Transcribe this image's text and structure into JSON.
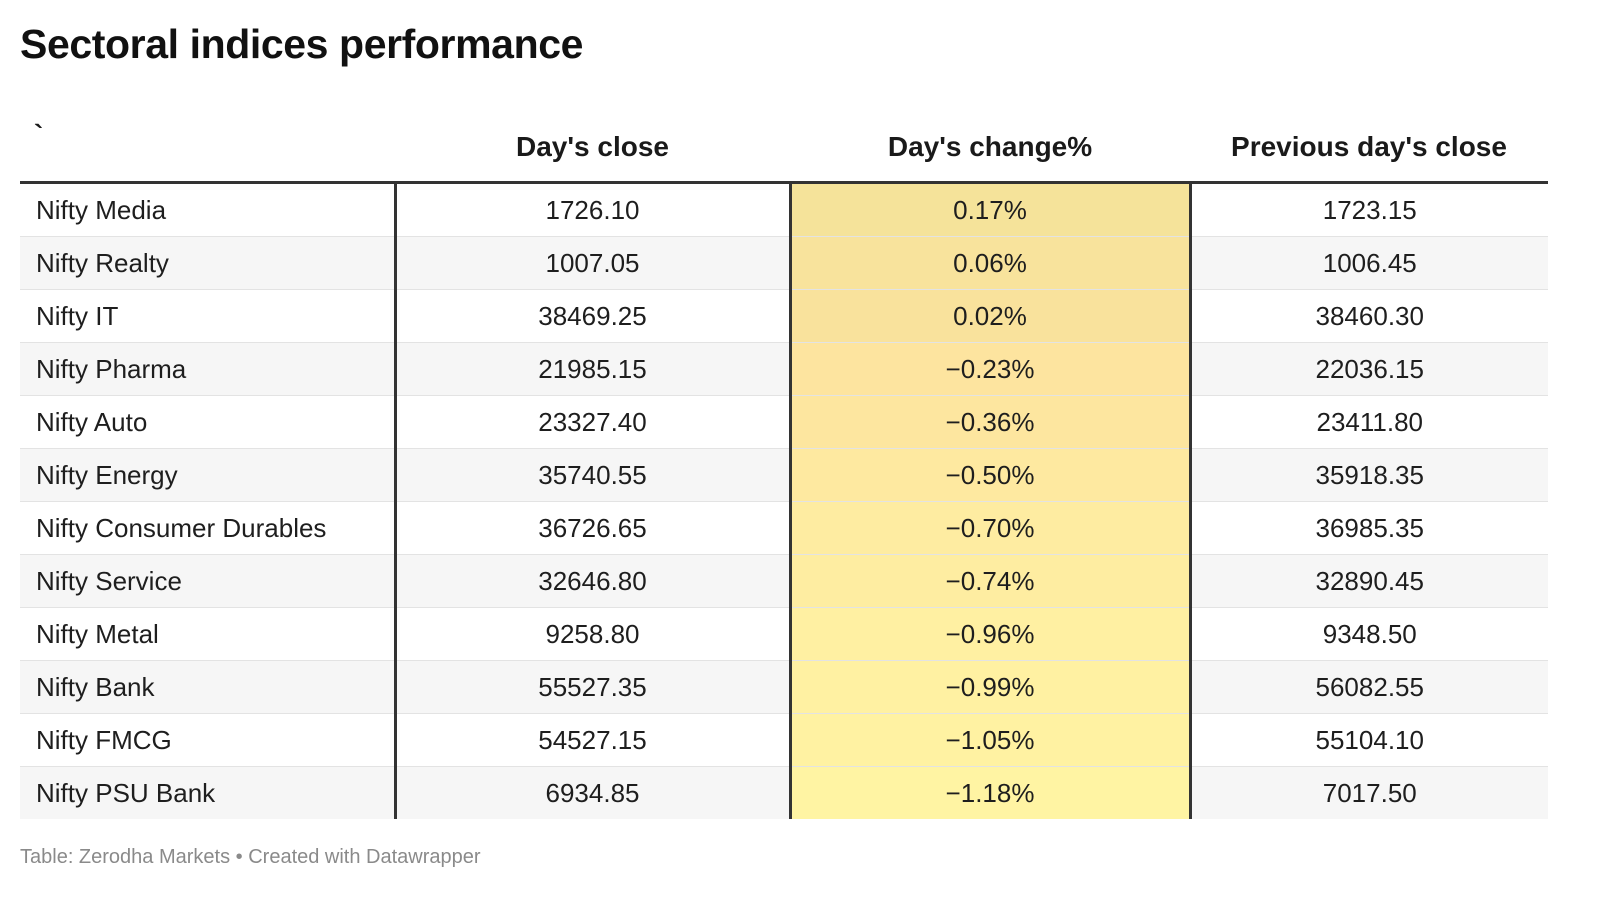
{
  "title": "Sectoral indices performance",
  "columns": {
    "name": "`",
    "close": "Day's close",
    "change": "Day's change%",
    "prev": "Previous day's close"
  },
  "rows": [
    {
      "name": "Nifty Media",
      "close": "1726.10",
      "change": "0.17%",
      "prev": "1723.15"
    },
    {
      "name": "Nifty Realty",
      "close": "1007.05",
      "change": "0.06%",
      "prev": "1006.45"
    },
    {
      "name": "Nifty IT",
      "close": "38469.25",
      "change": "0.02%",
      "prev": "38460.30"
    },
    {
      "name": "Nifty Pharma",
      "close": "21985.15",
      "change": "−0.23%",
      "prev": "22036.15"
    },
    {
      "name": "Nifty Auto",
      "close": "23327.40",
      "change": "−0.36%",
      "prev": "23411.80"
    },
    {
      "name": "Nifty Energy",
      "close": "35740.55",
      "change": "−0.50%",
      "prev": "35918.35"
    },
    {
      "name": "Nifty Consumer Durables",
      "close": "36726.65",
      "change": "−0.70%",
      "prev": "36985.35"
    },
    {
      "name": "Nifty Service",
      "close": "32646.80",
      "change": "−0.74%",
      "prev": "32890.45"
    },
    {
      "name": "Nifty Metal",
      "close": "9258.80",
      "change": "−0.96%",
      "prev": "9348.50"
    },
    {
      "name": "Nifty Bank",
      "close": "55527.35",
      "change": "−0.99%",
      "prev": "56082.55"
    },
    {
      "name": "Nifty FMCG",
      "close": "54527.15",
      "change": "−1.05%",
      "prev": "55104.10"
    },
    {
      "name": "Nifty PSU Bank",
      "close": "6934.85",
      "change": "−1.18%",
      "prev": "7017.50"
    }
  ],
  "heatmap_colors": {
    "max": "#f5e39a",
    "mid": "#fde29e",
    "min": "#fff4a3"
  },
  "footer": "Table: Zerodha Markets • Created with Datawrapper",
  "chart_data": {
    "type": "table",
    "title": "Sectoral indices performance",
    "columns": [
      "`",
      "Day's close",
      "Day's change%",
      "Previous day's close"
    ],
    "rows": [
      [
        "Nifty Media",
        1726.1,
        0.17,
        1723.15
      ],
      [
        "Nifty Realty",
        1007.05,
        0.06,
        1006.45
      ],
      [
        "Nifty IT",
        38469.25,
        0.02,
        38460.3
      ],
      [
        "Nifty Pharma",
        21985.15,
        -0.23,
        22036.15
      ],
      [
        "Nifty Auto",
        23327.4,
        -0.36,
        23411.8
      ],
      [
        "Nifty Energy",
        35740.55,
        -0.5,
        35918.35
      ],
      [
        "Nifty Consumer Durables",
        36726.65,
        -0.7,
        36985.35
      ],
      [
        "Nifty Service",
        32646.8,
        -0.74,
        32890.45
      ],
      [
        "Nifty Metal",
        9258.8,
        -0.96,
        9348.5
      ],
      [
        "Nifty Bank",
        55527.35,
        -0.99,
        56082.55
      ],
      [
        "Nifty FMCG",
        54527.15,
        -1.05,
        55104.1
      ],
      [
        "Nifty PSU Bank",
        6934.85,
        -1.18,
        7017.5
      ]
    ]
  }
}
